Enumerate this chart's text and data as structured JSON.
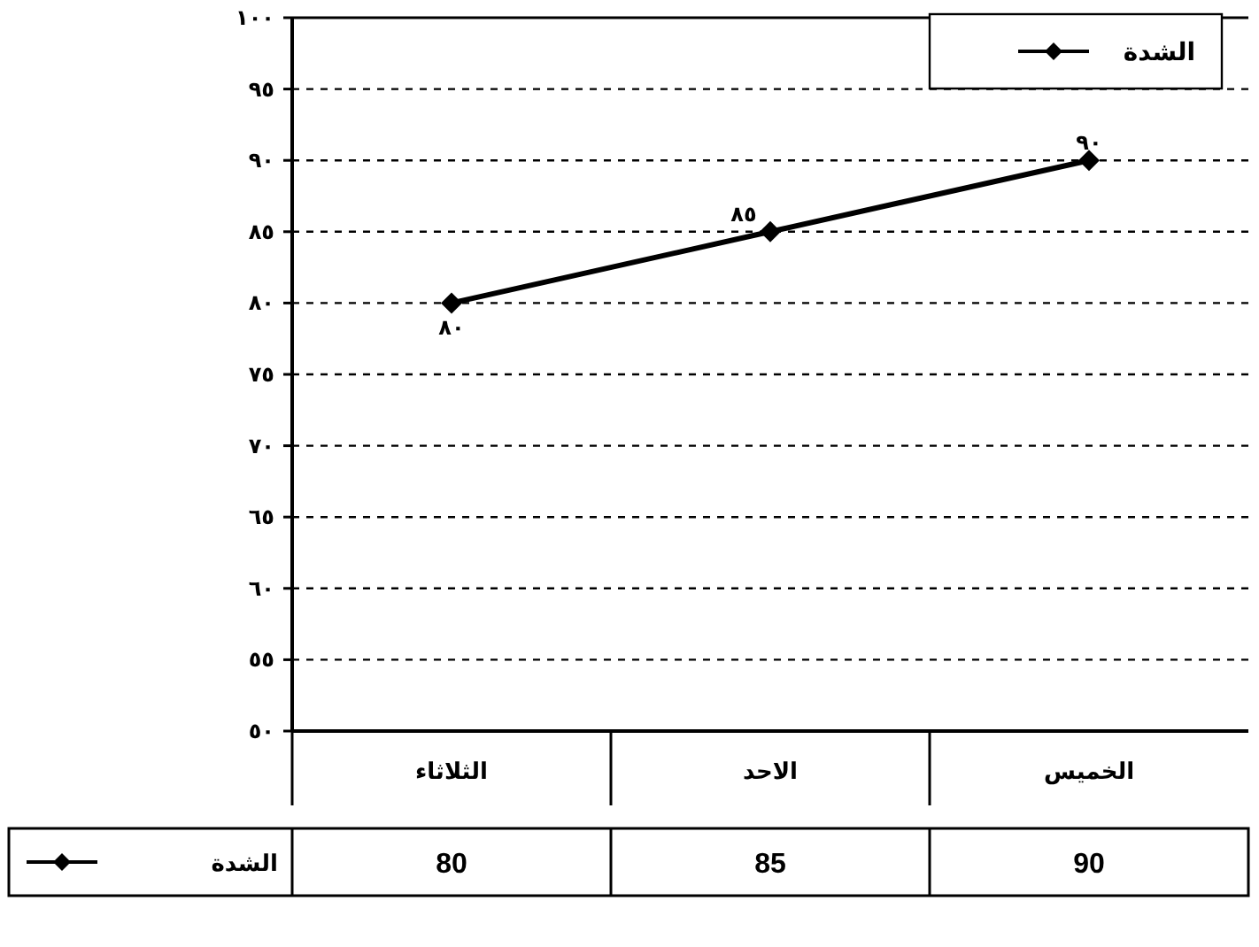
{
  "chart_data": {
    "type": "line",
    "categories": [
      "الثلاثاء",
      "الاحد",
      "الخميس"
    ],
    "series": [
      {
        "name": "الشدة",
        "color": "#000000",
        "values": [
          80,
          85,
          90
        ],
        "value_labels": [
          "80",
          "85",
          "90"
        ]
      }
    ],
    "annotations": [
      {
        "text": "٨٠",
        "x": "الثلاثاء",
        "y": 80
      },
      {
        "text": "٨٥",
        "x": "الاحد",
        "y": 85
      },
      {
        "text": "٩٠",
        "x": "الخميس",
        "y": 90
      }
    ],
    "ylim": [
      50,
      100
    ],
    "yticks": [
      {
        "value": 50,
        "label": "٥٠"
      },
      {
        "value": 55,
        "label": "٥٥"
      },
      {
        "value": 60,
        "label": "٦٠"
      },
      {
        "value": 65,
        "label": "٦٥"
      },
      {
        "value": 70,
        "label": "٧٠"
      },
      {
        "value": 75,
        "label": "٧٥"
      },
      {
        "value": 80,
        "label": "٨٠"
      },
      {
        "value": 85,
        "label": "٨٥"
      },
      {
        "value": 90,
        "label": "٩٠"
      },
      {
        "value": 95,
        "label": "٩٥"
      },
      {
        "value": 100,
        "label": "١٠٠"
      }
    ],
    "grid": "y",
    "legend": "top right",
    "marker": "diamond",
    "line_style": "solid",
    "data_labels": true
  }
}
